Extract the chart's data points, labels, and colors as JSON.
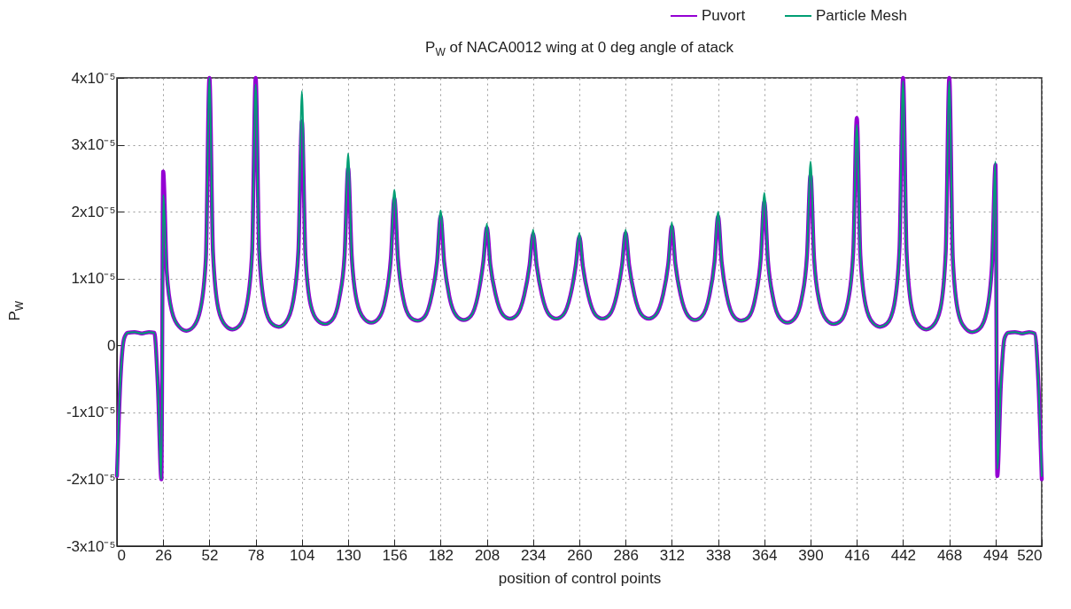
{
  "chart_data": {
    "type": "line",
    "title": "P$_{W}$ of NACA0012 wing at 0 deg angle of atack",
    "xlabel": "position of control points",
    "ylabel": "P$_{W}$",
    "xlim": [
      0,
      520
    ],
    "xticks": [
      0,
      26,
      52,
      78,
      104,
      130,
      156,
      182,
      208,
      234,
      260,
      286,
      312,
      338,
      364,
      390,
      416,
      442,
      468,
      494,
      520
    ],
    "ylim": [
      -3e-05,
      4e-05
    ],
    "yticks": [
      {
        "value": -3e-05,
        "label": "-3x10⁻⁵"
      },
      {
        "value": -2e-05,
        "label": "-2x10⁻⁵"
      },
      {
        "value": -1e-05,
        "label": "-1x10⁻⁵"
      },
      0,
      {
        "value": 1e-05,
        "label": "1x10⁻⁵"
      },
      {
        "value": 2e-05,
        "label": "2x10⁻⁵"
      },
      {
        "value": 3e-05,
        "label": "3x10⁻⁵"
      },
      {
        "value": 4e-05,
        "label": "4x10⁻⁵"
      }
    ],
    "x": [
      0,
      2,
      4,
      6,
      10,
      14,
      18,
      21,
      23,
      25,
      26,
      28,
      31,
      35,
      39,
      43,
      47,
      50,
      52,
      54,
      57,
      61,
      65,
      69,
      73,
      76,
      78,
      80,
      83,
      87,
      91,
      95,
      99,
      102,
      104,
      106,
      109,
      113,
      117,
      121,
      125,
      128,
      130,
      132,
      135,
      139,
      143,
      147,
      151,
      154,
      156,
      158,
      161,
      165,
      169,
      173,
      177,
      180,
      182,
      184,
      187,
      191,
      195,
      199,
      203,
      206,
      208,
      210,
      213,
      217,
      221,
      225,
      229,
      232,
      234,
      236,
      239,
      243,
      247,
      251,
      255,
      258,
      260,
      262,
      265,
      269,
      273,
      277,
      281,
      284,
      286,
      288,
      291,
      295,
      299,
      303,
      307,
      310,
      312,
      314,
      317,
      321,
      325,
      329,
      333,
      336,
      338,
      340,
      343,
      347,
      351,
      355,
      359,
      362,
      364,
      366,
      369,
      373,
      377,
      381,
      385,
      388,
      390,
      392,
      395,
      399,
      403,
      407,
      411,
      414,
      416,
      418,
      421,
      425,
      429,
      433,
      437,
      440,
      442,
      444,
      447,
      451,
      455,
      459,
      463,
      466,
      468,
      470,
      473,
      477,
      481,
      485,
      489,
      492,
      494,
      495,
      497,
      499,
      501,
      505,
      509,
      513,
      516,
      518,
      520
    ],
    "grid": true,
    "legend": "top right",
    "line_style": "solid",
    "series": [
      {
        "name": "Puvort",
        "color": "#9400d3",
        "values": [
          -1.95e-05,
          -5e-06,
          1e-06,
          1.9e-06,
          2e-06,
          1.8e-06,
          2e-06,
          1.9e-06,
          -6e-06,
          -2e-05,
          2.6e-05,
          1.1e-05,
          5e-06,
          2.8e-06,
          2.2e-06,
          2.8e-06,
          5.5e-06,
          1.3e-05,
          4e-05,
          1.4e-05,
          5.5e-06,
          3e-06,
          2.4e-06,
          3e-06,
          6e-06,
          1.4e-05,
          4e-05,
          1.4e-05,
          6e-06,
          3.3e-06,
          2.8e-06,
          3.5e-06,
          6.5e-06,
          1.4e-05,
          3.35e-05,
          1.35e-05,
          6e-06,
          3.7e-06,
          3.2e-06,
          3.8e-06,
          7e-06,
          1.35e-05,
          2.65e-05,
          1.35e-05,
          6.5e-06,
          4e-06,
          3.4e-06,
          4e-06,
          7e-06,
          1.3e-05,
          2.2e-05,
          1.3e-05,
          7e-06,
          4.2e-06,
          3.7e-06,
          4.3e-06,
          7.5e-06,
          1.25e-05,
          1.93e-05,
          1.25e-05,
          7.2e-06,
          4.4e-06,
          3.8e-06,
          4.4e-06,
          7.5e-06,
          1.25e-05,
          1.76e-05,
          1.2e-05,
          7.5e-06,
          4.6e-06,
          4e-06,
          4.6e-06,
          7.5e-06,
          1.2e-05,
          1.67e-05,
          1.2e-05,
          7.5e-06,
          4.6e-06,
          4e-06,
          4.6e-06,
          7.5e-06,
          1.2e-05,
          1.63e-05,
          1.18e-05,
          7.5e-06,
          4.6e-06,
          4e-06,
          4.6e-06,
          7.5e-06,
          1.2e-05,
          1.68e-05,
          1.2e-05,
          7.5e-06,
          4.6e-06,
          4e-06,
          4.6e-06,
          7.5e-06,
          1.22e-05,
          1.78e-05,
          1.22e-05,
          7.5e-06,
          4.5e-06,
          3.8e-06,
          4.4e-06,
          7.3e-06,
          1.25e-05,
          1.93e-05,
          1.25e-05,
          7.3e-06,
          4.3e-06,
          3.7e-06,
          4.2e-06,
          7.2e-06,
          1.3e-05,
          2.15e-05,
          1.28e-05,
          7e-06,
          4e-06,
          3.4e-06,
          4e-06,
          7e-06,
          1.35e-05,
          2.55e-05,
          1.3e-05,
          6.5e-06,
          3.8e-06,
          3.2e-06,
          3.7e-06,
          6.5e-06,
          1.4e-05,
          3.4e-05,
          1.35e-05,
          6e-06,
          3.4e-06,
          2.8e-06,
          3.3e-06,
          6e-06,
          1.45e-05,
          4e-05,
          1.4e-05,
          5.5e-06,
          3e-06,
          2.4e-06,
          3e-06,
          5.5e-06,
          1.4e-05,
          4e-05,
          1.3e-05,
          5e-06,
          2.6e-06,
          2e-06,
          2.5e-06,
          5e-06,
          1.2e-05,
          2.7e-05,
          -1.95e-05,
          -6e-06,
          1e-06,
          1.9e-06,
          2e-06,
          1.8e-06,
          2e-06,
          1.8e-06,
          -5e-06,
          -2e-05
        ]
      },
      {
        "name": "Particle Mesh",
        "color": "#009e73",
        "values": [
          -1.95e-05,
          -5e-06,
          1e-06,
          1.9e-06,
          2e-06,
          1.8e-06,
          2e-06,
          1.9e-06,
          -6e-06,
          -2e-05,
          2.25e-05,
          1.1e-05,
          5e-06,
          2.8e-06,
          2.2e-06,
          2.8e-06,
          5.5e-06,
          1.3e-05,
          4e-05,
          1.4e-05,
          5.5e-06,
          3e-06,
          2.4e-06,
          3e-06,
          6e-06,
          1.4e-05,
          3.9e-05,
          1.4e-05,
          6e-06,
          3.3e-06,
          2.8e-06,
          3.5e-06,
          6.5e-06,
          1.4e-05,
          3.8e-05,
          1.35e-05,
          6e-06,
          3.7e-06,
          3.2e-06,
          3.8e-06,
          7e-06,
          1.35e-05,
          2.87e-05,
          1.35e-05,
          6.5e-06,
          4e-06,
          3.4e-06,
          4e-06,
          7e-06,
          1.3e-05,
          2.33e-05,
          1.3e-05,
          7e-06,
          4.2e-06,
          3.7e-06,
          4.3e-06,
          7.5e-06,
          1.25e-05,
          2.02e-05,
          1.25e-05,
          7.2e-06,
          4.4e-06,
          3.8e-06,
          4.4e-06,
          7.5e-06,
          1.25e-05,
          1.82e-05,
          1.2e-05,
          7.5e-06,
          4.6e-06,
          4e-06,
          4.6e-06,
          7.5e-06,
          1.2e-05,
          1.73e-05,
          1.2e-05,
          7.5e-06,
          4.6e-06,
          4e-06,
          4.6e-06,
          7.5e-06,
          1.2e-05,
          1.68e-05,
          1.18e-05,
          7.5e-06,
          4.6e-06,
          4e-06,
          4.6e-06,
          7.5e-06,
          1.2e-05,
          1.73e-05,
          1.2e-05,
          7.5e-06,
          4.6e-06,
          4e-06,
          4.6e-06,
          7.5e-06,
          1.22e-05,
          1.84e-05,
          1.22e-05,
          7.5e-06,
          4.5e-06,
          3.8e-06,
          4.4e-06,
          7.3e-06,
          1.25e-05,
          2e-05,
          1.25e-05,
          7.3e-06,
          4.3e-06,
          3.7e-06,
          4.2e-06,
          7.2e-06,
          1.3e-05,
          2.28e-05,
          1.28e-05,
          7e-06,
          4e-06,
          3.4e-06,
          4e-06,
          7e-06,
          1.35e-05,
          2.75e-05,
          1.3e-05,
          6.5e-06,
          3.8e-06,
          3.2e-06,
          3.7e-06,
          6.5e-06,
          1.4e-05,
          3.3e-05,
          1.35e-05,
          6e-06,
          3.4e-06,
          2.8e-06,
          3.3e-06,
          6e-06,
          1.45e-05,
          3.95e-05,
          1.4e-05,
          5.5e-06,
          3e-06,
          2.4e-06,
          3e-06,
          5.5e-06,
          1.4e-05,
          3.95e-05,
          1.3e-05,
          5e-06,
          2.6e-06,
          2e-06,
          2.5e-06,
          5e-06,
          1.2e-05,
          2.75e-05,
          -1.85e-05,
          -6e-06,
          1e-06,
          1.9e-06,
          2e-06,
          1.8e-06,
          2e-06,
          1.8e-06,
          -5e-06,
          -1.95e-05
        ]
      }
    ]
  }
}
